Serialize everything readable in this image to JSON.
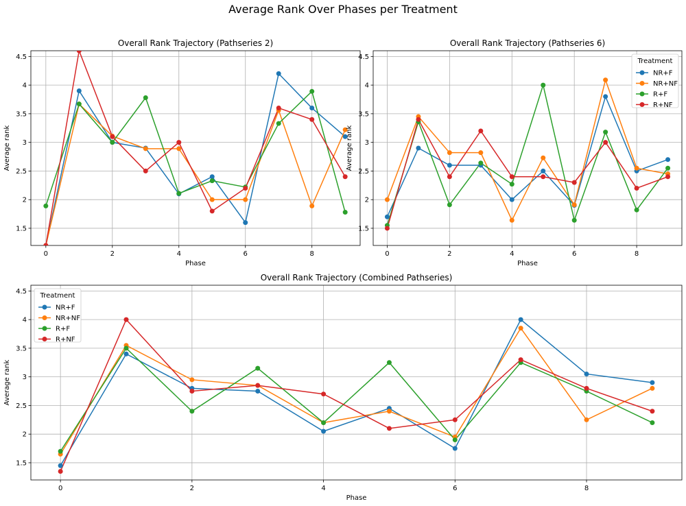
{
  "figure": {
    "title": "Average Rank Over Phases per Treatment"
  },
  "colors": {
    "NR+F": "#1f77b4",
    "NR+NF": "#ff7f0e",
    "R+F": "#2ca02c",
    "R+NF": "#d62728",
    "grid": "#b0b0b0"
  },
  "chart_data": [
    {
      "type": "line",
      "title": "Overall Rank Trajectory (Pathseries 2)",
      "xlabel": "Phase",
      "ylabel": "Average rank",
      "xlim": [
        -0.45,
        9.45
      ],
      "ylim": [
        1.2,
        4.6
      ],
      "xticks": [
        0,
        2,
        4,
        6,
        8
      ],
      "yticks": [
        1.5,
        2.0,
        2.5,
        3.0,
        3.5,
        4.0,
        4.5
      ],
      "grid": true,
      "legend": null,
      "x": [
        0,
        1,
        2,
        3,
        4,
        5,
        6,
        7,
        8,
        9
      ],
      "series": [
        {
          "name": "NR+F",
          "values": [
            1.2,
            3.9,
            3.0,
            2.9,
            2.1,
            2.4,
            1.6,
            4.2,
            3.6,
            3.1
          ]
        },
        {
          "name": "NR+NF",
          "values": [
            1.2,
            3.67,
            3.11,
            2.89,
            2.89,
            2.0,
            2.0,
            3.56,
            1.89,
            3.22
          ]
        },
        {
          "name": "R+F",
          "values": [
            1.89,
            3.67,
            3.0,
            3.78,
            2.11,
            2.33,
            2.22,
            3.33,
            3.89,
            1.78
          ]
        },
        {
          "name": "R+NF",
          "values": [
            1.2,
            4.6,
            3.1,
            2.5,
            3.0,
            1.8,
            2.2,
            3.6,
            3.4,
            2.4
          ]
        }
      ]
    },
    {
      "type": "line",
      "title": "Overall Rank Trajectory (Pathseries 6)",
      "xlabel": "Phase",
      "ylabel": "Average rank",
      "xlim": [
        -0.45,
        9.45
      ],
      "ylim": [
        1.2,
        4.6
      ],
      "xticks": [
        0,
        2,
        4,
        6,
        8
      ],
      "yticks": [
        1.5,
        2.0,
        2.5,
        3.0,
        3.5,
        4.0,
        4.5
      ],
      "grid": true,
      "legend": {
        "title": "Treatment",
        "position": "upper right",
        "entries": [
          "NR+F",
          "NR+NF",
          "R+F",
          "R+NF"
        ]
      },
      "x": [
        0,
        1,
        2,
        3,
        4,
        5,
        6,
        7,
        8,
        9
      ],
      "series": [
        {
          "name": "NR+F",
          "values": [
            1.7,
            2.9,
            2.6,
            2.6,
            2.0,
            2.5,
            1.9,
            3.8,
            2.5,
            2.7
          ]
        },
        {
          "name": "NR+NF",
          "values": [
            2.0,
            3.45,
            2.82,
            2.82,
            1.64,
            2.73,
            1.91,
            4.09,
            2.55,
            2.45
          ]
        },
        {
          "name": "R+F",
          "values": [
            1.55,
            3.36,
            1.91,
            2.64,
            2.27,
            4.0,
            1.64,
            3.18,
            1.82,
            2.55
          ]
        },
        {
          "name": "R+NF",
          "values": [
            1.5,
            3.4,
            2.4,
            3.2,
            2.4,
            2.4,
            2.3,
            3.0,
            2.2,
            2.4
          ]
        }
      ]
    },
    {
      "type": "line",
      "title": "Overall Rank Trajectory (Combined Pathseries)",
      "xlabel": "Phase",
      "ylabel": "Average rank",
      "xlim": [
        -0.45,
        9.45
      ],
      "ylim": [
        1.2,
        4.6
      ],
      "xticks": [
        0,
        2,
        4,
        6,
        8
      ],
      "yticks": [
        1.5,
        2.0,
        2.5,
        3.0,
        3.5,
        4.0,
        4.5
      ],
      "grid": true,
      "legend": {
        "title": "Treatment",
        "position": "upper left",
        "entries": [
          "NR+F",
          "NR+NF",
          "R+F",
          "R+NF"
        ]
      },
      "x": [
        0,
        1,
        2,
        3,
        4,
        5,
        6,
        7,
        8,
        9
      ],
      "series": [
        {
          "name": "NR+F",
          "values": [
            1.45,
            3.4,
            2.8,
            2.75,
            2.05,
            2.45,
            1.75,
            4.0,
            3.05,
            2.9
          ]
        },
        {
          "name": "NR+NF",
          "values": [
            1.65,
            3.55,
            2.95,
            2.85,
            2.2,
            2.4,
            1.95,
            3.85,
            2.25,
            2.8
          ]
        },
        {
          "name": "R+F",
          "values": [
            1.7,
            3.5,
            2.4,
            3.15,
            2.2,
            3.25,
            1.9,
            3.25,
            2.75,
            2.2
          ]
        },
        {
          "name": "R+NF",
          "values": [
            1.35,
            4.0,
            2.75,
            2.85,
            2.7,
            2.1,
            2.25,
            3.3,
            2.8,
            2.4
          ]
        }
      ]
    }
  ]
}
